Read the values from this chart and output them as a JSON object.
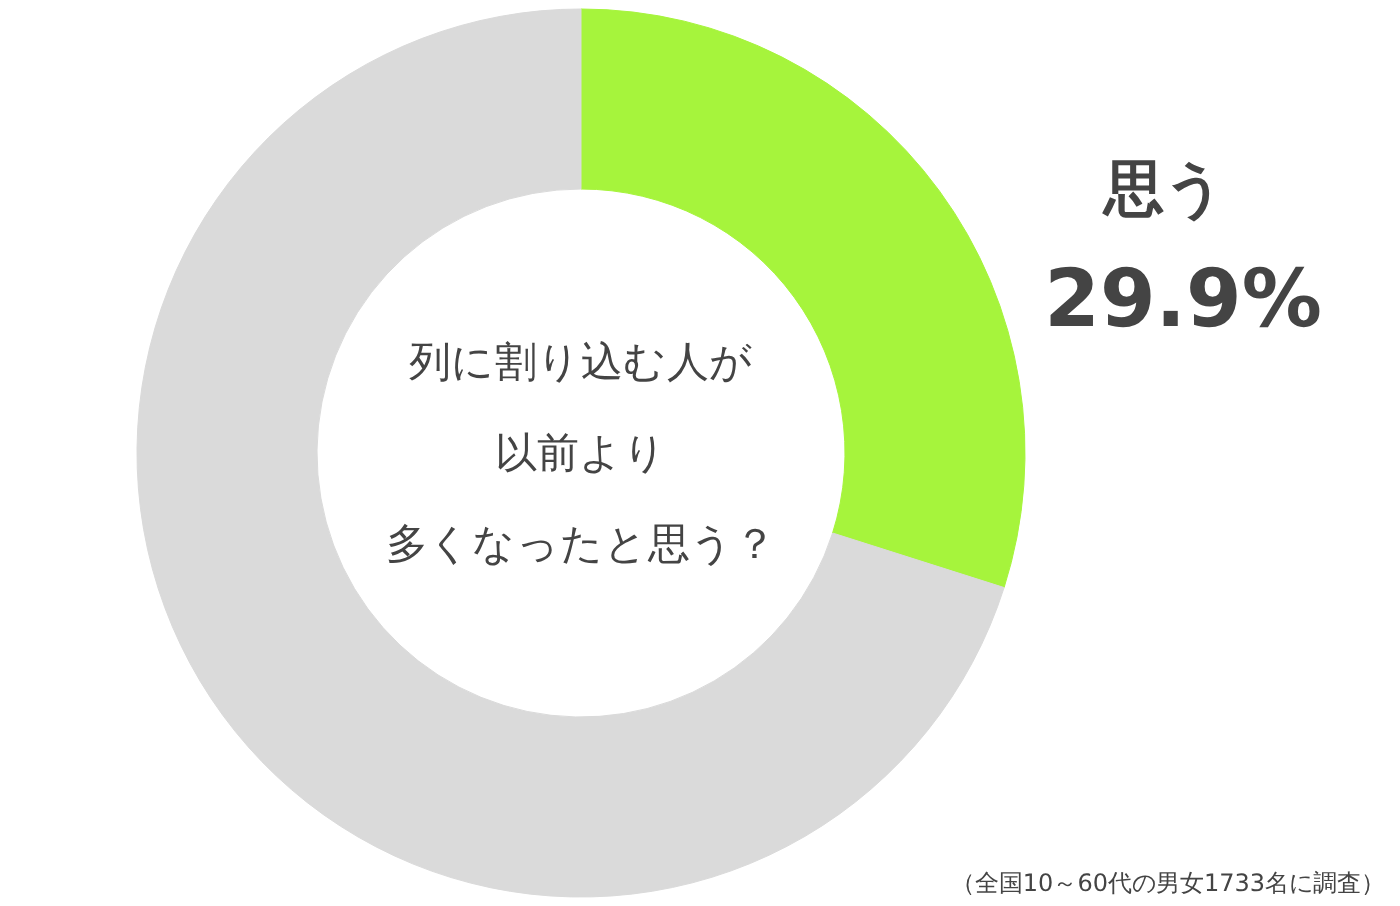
{
  "chart_data": {
    "type": "donut",
    "title": "列に割り込む人が以前より多くなったと思う？",
    "categories": [
      "思う",
      null
    ],
    "values": [
      29.9,
      70.1
    ],
    "colors": [
      "#a6f43c",
      "#dadada"
    ],
    "value_labels": [
      "29.9%",
      null
    ],
    "annotations": [
      "（全国10～60代の男女1733名に調査）"
    ]
  }
}
